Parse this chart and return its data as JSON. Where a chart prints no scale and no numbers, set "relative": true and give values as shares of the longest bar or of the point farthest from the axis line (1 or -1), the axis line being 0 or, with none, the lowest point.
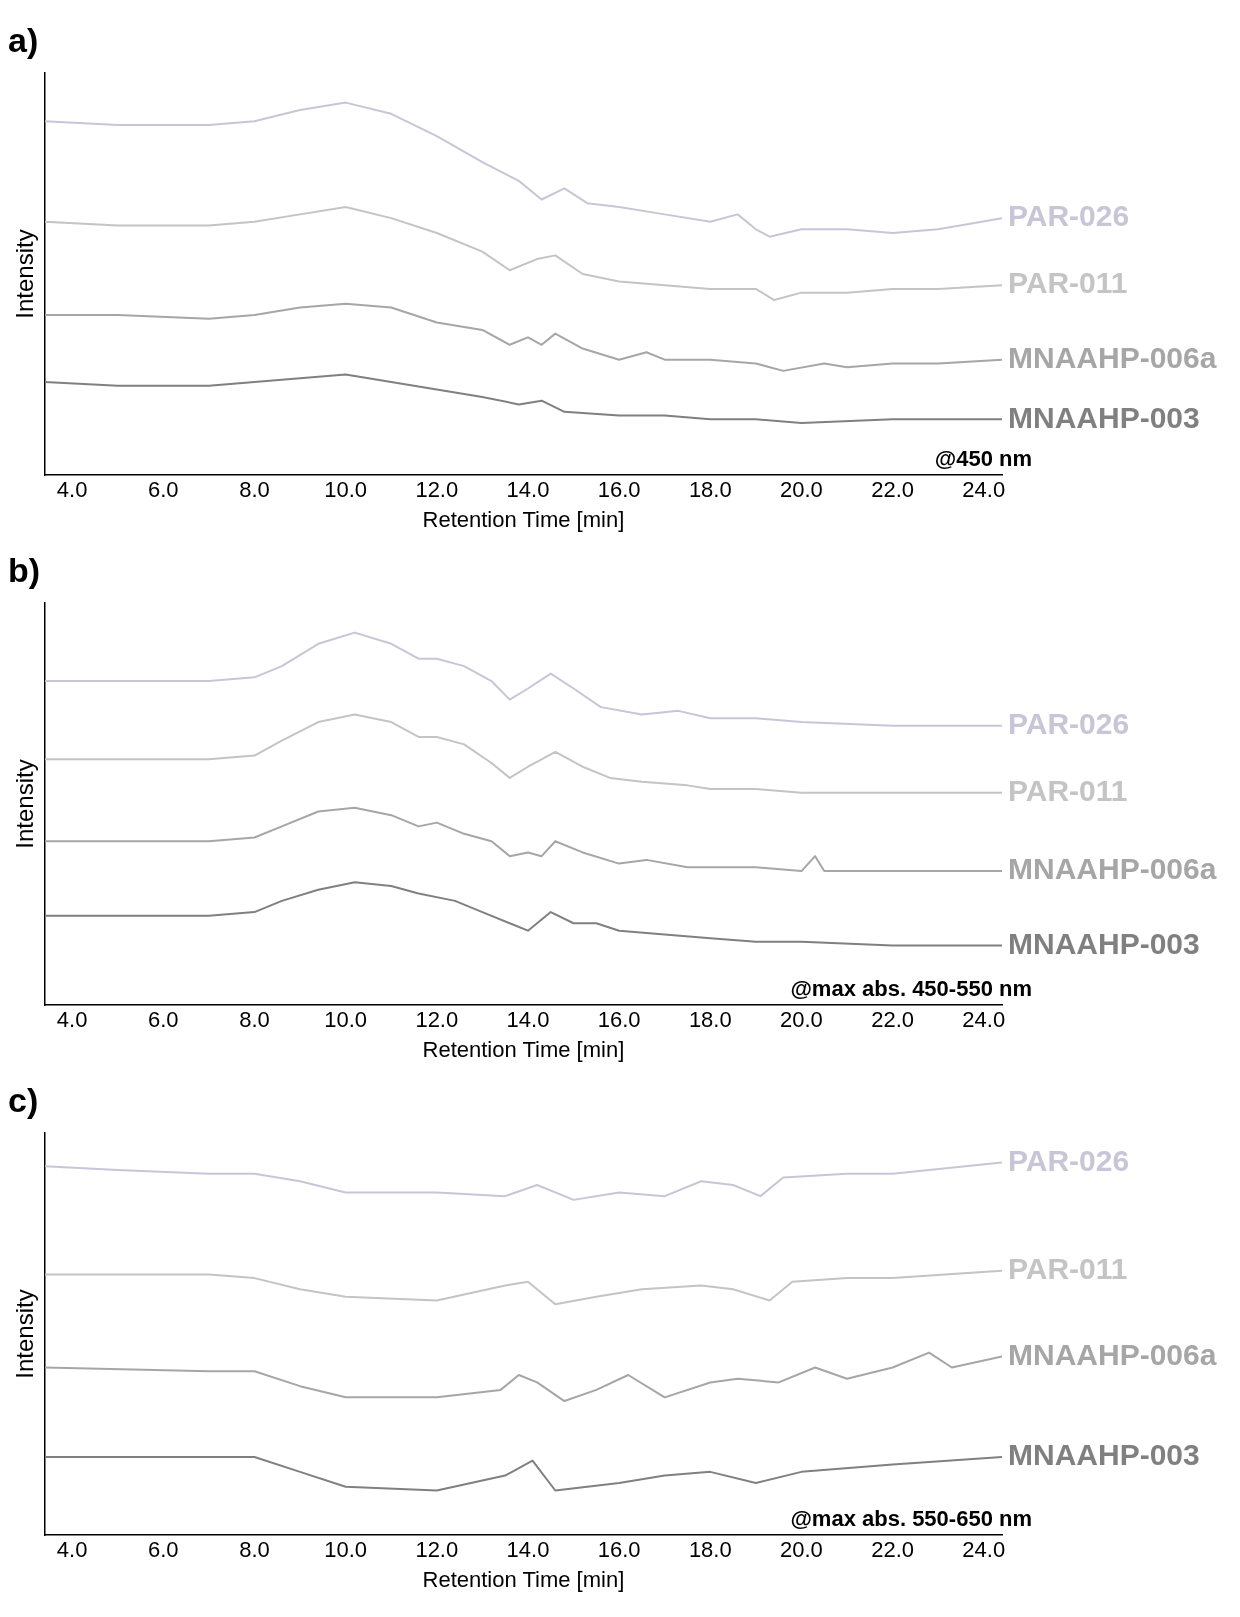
{
  "chart_data": [
    {
      "type": "line",
      "title": "a)",
      "xlabel": "Retention Time [min]",
      "ylabel": "Intensity",
      "relative": true,
      "grid": false,
      "legend": false,
      "tick_labels": "x",
      "marker": "none",
      "line_style": "solid",
      "annotations": [
        "@450 nm"
      ],
      "xlim": [
        3.4,
        24.4
      ],
      "xticks": [
        {
          "value": 4,
          "label": "4.0"
        },
        {
          "value": 6,
          "label": "6.0"
        },
        {
          "value": 8,
          "label": "8.0"
        },
        {
          "value": 10,
          "label": "10.0"
        },
        {
          "value": 12,
          "label": "12.0"
        },
        {
          "value": 14,
          "label": "14.0"
        },
        {
          "value": 16,
          "label": "16.0"
        },
        {
          "value": 18,
          "label": "18.0"
        },
        {
          "value": 20,
          "label": "20.0"
        },
        {
          "value": 22,
          "label": "22.0"
        },
        {
          "value": 24,
          "label": "24.0"
        }
      ],
      "series": [
        {
          "name": "PAR-026",
          "color": "#c8c6d6",
          "x": [
            3.4,
            5,
            7,
            8,
            9,
            10,
            11,
            12,
            13,
            13.8,
            14.3,
            14.8,
            15.3,
            16,
            17,
            18,
            18.6,
            19,
            19.3,
            20,
            21,
            22,
            23,
            24.4
          ],
          "values": [
            0.95,
            0.94,
            0.94,
            0.95,
            0.98,
            1.0,
            0.97,
            0.91,
            0.84,
            0.79,
            0.74,
            0.77,
            0.73,
            0.72,
            0.7,
            0.68,
            0.7,
            0.66,
            0.64,
            0.66,
            0.66,
            0.65,
            0.66,
            0.69
          ]
        },
        {
          "name": "PAR-011",
          "color": "#c4c4c4",
          "x": [
            3.4,
            5,
            7,
            8,
            9,
            10,
            11,
            12,
            13,
            13.6,
            14.2,
            14.6,
            15.2,
            16,
            17,
            18,
            19,
            19.4,
            20,
            21,
            22,
            23,
            24.4
          ],
          "values": [
            0.68,
            0.67,
            0.67,
            0.68,
            0.7,
            0.72,
            0.69,
            0.65,
            0.6,
            0.55,
            0.58,
            0.59,
            0.54,
            0.52,
            0.51,
            0.5,
            0.5,
            0.47,
            0.49,
            0.49,
            0.5,
            0.5,
            0.51
          ]
        },
        {
          "name": "MNAAHP-006a",
          "color": "#a6a6a6",
          "x": [
            3.4,
            5,
            7,
            8,
            9,
            10,
            11,
            12,
            13,
            13.6,
            14,
            14.3,
            14.6,
            15.2,
            16,
            16.6,
            17,
            18,
            19,
            19.6,
            20.5,
            21,
            22,
            23,
            24.4
          ],
          "values": [
            0.43,
            0.43,
            0.42,
            0.43,
            0.45,
            0.46,
            0.45,
            0.41,
            0.39,
            0.35,
            0.37,
            0.35,
            0.38,
            0.34,
            0.31,
            0.33,
            0.31,
            0.31,
            0.3,
            0.28,
            0.3,
            0.29,
            0.3,
            0.3,
            0.31
          ]
        },
        {
          "name": "MNAAHP-003",
          "color": "#808080",
          "x": [
            3.4,
            5,
            7,
            8,
            9,
            10,
            11,
            12,
            13,
            13.8,
            14.3,
            14.8,
            16,
            17,
            18,
            19,
            20,
            22,
            24.4
          ],
          "values": [
            0.25,
            0.24,
            0.24,
            0.25,
            0.26,
            0.27,
            0.25,
            0.23,
            0.21,
            0.19,
            0.2,
            0.17,
            0.16,
            0.16,
            0.15,
            0.15,
            0.14,
            0.15,
            0.15
          ]
        }
      ]
    },
    {
      "type": "line",
      "title": "b)",
      "xlabel": "Retention Time [min]",
      "ylabel": "Intensity",
      "relative": true,
      "grid": false,
      "legend": false,
      "tick_labels": "x",
      "marker": "none",
      "line_style": "solid",
      "annotations": [
        "@max abs. 450-550 nm"
      ],
      "xlim": [
        3.4,
        24.4
      ],
      "xticks": [
        {
          "value": 4,
          "label": "4.0"
        },
        {
          "value": 6,
          "label": "6.0"
        },
        {
          "value": 8,
          "label": "8.0"
        },
        {
          "value": 10,
          "label": "10.0"
        },
        {
          "value": 12,
          "label": "12.0"
        },
        {
          "value": 14,
          "label": "14.0"
        },
        {
          "value": 16,
          "label": "16.0"
        },
        {
          "value": 18,
          "label": "18.0"
        },
        {
          "value": 20,
          "label": "20.0"
        },
        {
          "value": 22,
          "label": "22.0"
        },
        {
          "value": 24,
          "label": "24.0"
        }
      ],
      "series": [
        {
          "name": "PAR-026",
          "color": "#c8c6d6",
          "x": [
            3.4,
            7,
            8,
            8.6,
            9.4,
            10.2,
            11,
            11.6,
            12,
            12.6,
            13.2,
            13.6,
            14,
            14.5,
            15,
            15.6,
            16.5,
            17.3,
            18,
            19,
            20,
            22,
            24.4
          ],
          "values": [
            0.87,
            0.87,
            0.88,
            0.91,
            0.97,
            1.0,
            0.97,
            0.93,
            0.93,
            0.91,
            0.87,
            0.82,
            0.85,
            0.89,
            0.85,
            0.8,
            0.78,
            0.79,
            0.77,
            0.77,
            0.76,
            0.75,
            0.75
          ]
        },
        {
          "name": "PAR-011",
          "color": "#c4c4c4",
          "x": [
            3.4,
            7,
            8,
            8.6,
            9.4,
            10.2,
            11,
            11.6,
            12,
            12.6,
            13.2,
            13.6,
            14,
            14.6,
            15.2,
            15.8,
            16.5,
            17.5,
            18,
            19,
            20,
            22,
            24.4
          ],
          "values": [
            0.66,
            0.66,
            0.67,
            0.71,
            0.76,
            0.78,
            0.76,
            0.72,
            0.72,
            0.7,
            0.65,
            0.61,
            0.64,
            0.68,
            0.64,
            0.61,
            0.6,
            0.59,
            0.58,
            0.58,
            0.57,
            0.57,
            0.57
          ]
        },
        {
          "name": "MNAAHP-006a",
          "color": "#a6a6a6",
          "x": [
            3.4,
            7,
            8,
            8.6,
            9.4,
            10.2,
            11,
            11.6,
            12,
            12.6,
            13.2,
            13.6,
            14,
            14.3,
            14.6,
            15.2,
            16,
            16.6,
            17.5,
            18.5,
            19,
            20,
            20.3,
            20.5,
            22,
            24.4
          ],
          "values": [
            0.44,
            0.44,
            0.45,
            0.48,
            0.52,
            0.53,
            0.51,
            0.48,
            0.49,
            0.46,
            0.44,
            0.4,
            0.41,
            0.4,
            0.44,
            0.41,
            0.38,
            0.39,
            0.37,
            0.37,
            0.37,
            0.36,
            0.4,
            0.36,
            0.36,
            0.36
          ]
        },
        {
          "name": "MNAAHP-003",
          "color": "#808080",
          "x": [
            3.4,
            7,
            8,
            8.6,
            9.4,
            10.2,
            11,
            11.6,
            12.4,
            13,
            13.6,
            14,
            14.5,
            15,
            15.5,
            16,
            17,
            18,
            19,
            20,
            22,
            24.4
          ],
          "values": [
            0.24,
            0.24,
            0.25,
            0.28,
            0.31,
            0.33,
            0.32,
            0.3,
            0.28,
            0.25,
            0.22,
            0.2,
            0.25,
            0.22,
            0.22,
            0.2,
            0.19,
            0.18,
            0.17,
            0.17,
            0.16,
            0.16
          ]
        }
      ]
    },
    {
      "type": "line",
      "title": "c)",
      "xlabel": "Retention Time [min]",
      "ylabel": "Intensity",
      "relative": true,
      "grid": false,
      "legend": false,
      "tick_labels": "x",
      "marker": "none",
      "line_style": "solid",
      "annotations": [
        "@max abs. 550-650 nm"
      ],
      "xlim": [
        3.4,
        24.4
      ],
      "xticks": [
        {
          "value": 4,
          "label": "4.0"
        },
        {
          "value": 6,
          "label": "6.0"
        },
        {
          "value": 8,
          "label": "8.0"
        },
        {
          "value": 10,
          "label": "10.0"
        },
        {
          "value": 12,
          "label": "12.0"
        },
        {
          "value": 14,
          "label": "14.0"
        },
        {
          "value": 16,
          "label": "16.0"
        },
        {
          "value": 18,
          "label": "18.0"
        },
        {
          "value": 20,
          "label": "20.0"
        },
        {
          "value": 22,
          "label": "22.0"
        },
        {
          "value": 24,
          "label": "24.0"
        }
      ],
      "series": [
        {
          "name": "PAR-026",
          "color": "#c8c6d6",
          "x": [
            3.4,
            5,
            7,
            8,
            9,
            10,
            12,
            13.5,
            14.2,
            14.6,
            15,
            16,
            17,
            17.8,
            18.5,
            19.1,
            19.6,
            21,
            22,
            24.4
          ],
          "values": [
            0.99,
            0.98,
            0.97,
            0.97,
            0.95,
            0.92,
            0.92,
            0.91,
            0.94,
            0.92,
            0.9,
            0.92,
            0.91,
            0.95,
            0.94,
            0.91,
            0.96,
            0.97,
            0.97,
            1.0
          ]
        },
        {
          "name": "PAR-011",
          "color": "#c4c4c4",
          "x": [
            3.4,
            7,
            8,
            9,
            10,
            12,
            13.5,
            14,
            14.6,
            15.5,
            16.5,
            17.8,
            18.5,
            19.3,
            19.8,
            21,
            22,
            24.4
          ],
          "values": [
            0.7,
            0.7,
            0.69,
            0.66,
            0.64,
            0.63,
            0.67,
            0.68,
            0.62,
            0.64,
            0.66,
            0.67,
            0.66,
            0.63,
            0.68,
            0.69,
            0.69,
            0.71
          ]
        },
        {
          "name": "MNAAHP-006a",
          "color": "#a6a6a6",
          "x": [
            3.4,
            7,
            8,
            9,
            10,
            12,
            13.4,
            13.8,
            14.2,
            14.8,
            15.5,
            16.2,
            17,
            18,
            18.6,
            19.5,
            20.3,
            21,
            22,
            22.8,
            23.3,
            24.4
          ],
          "values": [
            0.45,
            0.44,
            0.44,
            0.4,
            0.37,
            0.37,
            0.39,
            0.43,
            0.41,
            0.36,
            0.39,
            0.43,
            0.37,
            0.41,
            0.42,
            0.41,
            0.45,
            0.42,
            0.45,
            0.49,
            0.45,
            0.48
          ]
        },
        {
          "name": "MNAAHP-003",
          "color": "#808080",
          "x": [
            3.4,
            7,
            8,
            9,
            10,
            12,
            13.5,
            14.1,
            14.6,
            16,
            17,
            18,
            19,
            20,
            22,
            24.4
          ],
          "values": [
            0.21,
            0.21,
            0.21,
            0.17,
            0.13,
            0.12,
            0.16,
            0.2,
            0.12,
            0.14,
            0.16,
            0.17,
            0.14,
            0.17,
            0.19,
            0.21
          ]
        }
      ]
    }
  ]
}
